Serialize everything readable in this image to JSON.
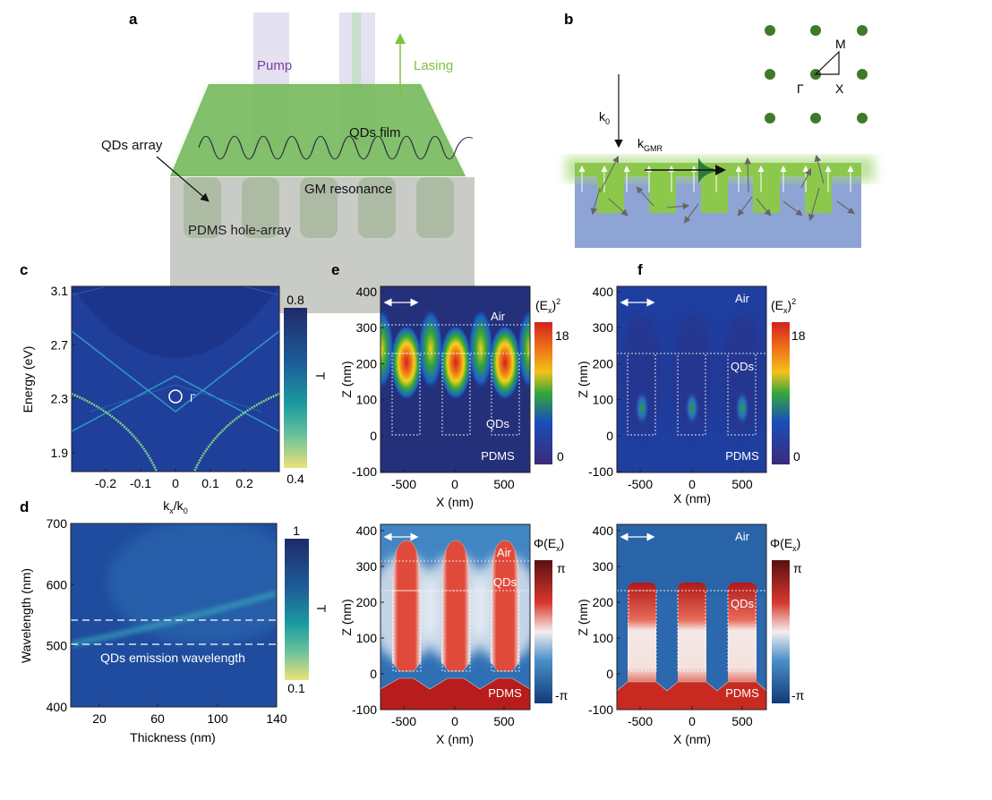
{
  "panels": {
    "a": {
      "letter": "a",
      "pump": "Pump",
      "lasing": "Lasing",
      "qds_film": "QDs film",
      "qds_array": "QDs array",
      "gm_resonance": "GM resonance",
      "pdms": "PDMS hole-array"
    },
    "b": {
      "letter": "b",
      "k0": "k",
      "k0_sub": "0",
      "kgmr": "k",
      "kgmr_sub": "GMR",
      "M": "M",
      "Gamma": "Γ",
      "X": "X"
    },
    "c": {
      "letter": "c",
      "ylabel": "Energy (eV)",
      "xlabel_main": "k",
      "xlabel_sub1": "x",
      "xlabel_mid": "/k",
      "xlabel_sub2": "0",
      "yticks": [
        "3.1",
        "2.7",
        "2.3",
        "1.9"
      ],
      "xticks": [
        "-0.2",
        "-0.1",
        "0",
        "0.1",
        "0.2"
      ],
      "cbar_max": "0.8",
      "cbar_min": "0.4",
      "cbar_label": "T",
      "gamma_label": "Γ"
    },
    "d": {
      "letter": "d",
      "ylabel": "Wavelength (nm)",
      "xlabel": "Thickness (nm)",
      "yticks": [
        "700",
        "600",
        "500",
        "400"
      ],
      "xticks": [
        "20",
        "60",
        "100",
        "140"
      ],
      "cbar_max": "1",
      "cbar_min": "0.1",
      "cbar_label": "T",
      "annotation": "QDs emission wavelength"
    },
    "e": {
      "letter": "e",
      "ylabel": "Z (nm)",
      "xlabel": "X (nm)",
      "yticks": [
        "400",
        "300",
        "200",
        "100",
        "0",
        "-100"
      ],
      "xticks": [
        "-500",
        "0",
        "500"
      ],
      "top_cbar_title": "(E",
      "top_cbar_sub": "x",
      "top_cbar_sup": ")2",
      "top_cbar_max": "18",
      "top_cbar_min": "0",
      "bot_cbar_title": "Φ(E",
      "bot_cbar_sub": "x",
      "bot_cbar_close": ")",
      "bot_cbar_max": "π",
      "bot_cbar_min": "-π",
      "air": "Air",
      "qds": "QDs",
      "pdms": "PDMS"
    },
    "f": {
      "letter": "f",
      "ylabel": "Z (nm)",
      "xlabel": "X (nm)",
      "yticks": [
        "400",
        "300",
        "200",
        "100",
        "0",
        "-100"
      ],
      "xticks": [
        "-500",
        "0",
        "500"
      ],
      "air": "Air",
      "qds": "QDs",
      "pdms": "PDMS"
    }
  },
  "colors": {
    "dark_blue": "#1e3a8a",
    "field_blue": "#1f3fa0",
    "green_film": "#6dbb45",
    "pump_purple": "#7a3fa0",
    "lasing_green": "#7fc241",
    "phase_red": "#c8241f"
  }
}
